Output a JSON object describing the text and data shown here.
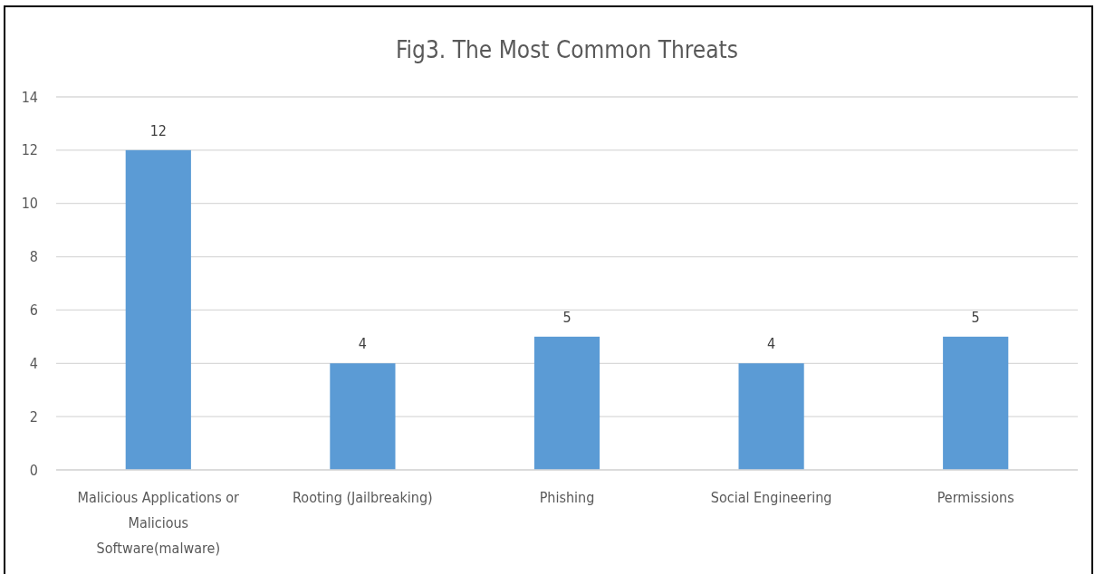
{
  "chart_data": {
    "type": "bar",
    "title": "Fig3. The Most Common Threats",
    "categories": [
      "Malicious Applications or Malicious Software(malware)",
      "Rooting (Jailbreaking)",
      "Phishing",
      "Social Engineering",
      "Permissions"
    ],
    "values": [
      12,
      4,
      5,
      4,
      5
    ],
    "color": "#5b9bd5",
    "ylim": [
      0,
      14
    ],
    "yticks": [
      0,
      2,
      4,
      6,
      8,
      10,
      12,
      14
    ],
    "grid": "y",
    "data_labels": true
  }
}
